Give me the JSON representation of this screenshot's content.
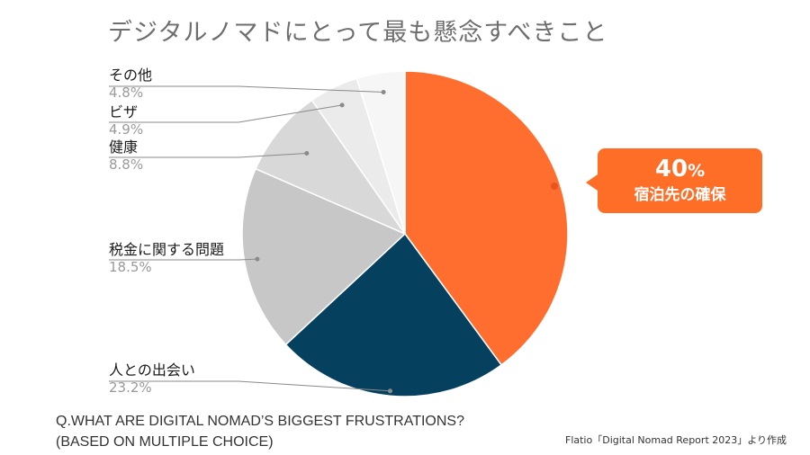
{
  "title": "デジタルノマドにとって最も懸念すべきこと",
  "question_line1": "Q.WHAT ARE DIGITAL NOMAD’S BIGGEST FRUSTRATIONS?",
  "question_line2": "(BASED ON MULTIPLE CHOICE)",
  "source": "Flatio「Digital Nomad Report 2023」より作成",
  "callout": {
    "value": "40",
    "unit": "%",
    "label": "宿泊先の確保"
  },
  "chart_data": {
    "type": "pie",
    "title": "デジタルノマドにとって最も懸念すべきこと",
    "start": "top, clockwise",
    "slices": [
      {
        "label": "宿泊先の確保",
        "value": 40,
        "display": "40%",
        "color": "#ff6e2e"
      },
      {
        "label": "人との出会い",
        "value": 23.2,
        "display": "23.2%",
        "color": "#05405f"
      },
      {
        "label": "税金に関する問題",
        "value": 18.5,
        "display": "18.5%",
        "color": "#c7c7c7"
      },
      {
        "label": "健康",
        "value": 8.8,
        "display": "8.8%",
        "color": "#d8d8d8"
      },
      {
        "label": "ビザ",
        "value": 4.9,
        "display": "4.9%",
        "color": "#ebebeb"
      },
      {
        "label": "その他",
        "value": 4.8,
        "display": "4.8%",
        "color": "#f6f6f6"
      }
    ]
  },
  "labels": [
    {
      "name": "その他",
      "pct": "4.8%"
    },
    {
      "name": "ビザ",
      "pct": "4.9%"
    },
    {
      "name": "健康",
      "pct": "8.8%"
    },
    {
      "name": "税金に関する問題",
      "pct": "18.5%"
    },
    {
      "name": "人との出会い",
      "pct": "23.2%"
    }
  ]
}
